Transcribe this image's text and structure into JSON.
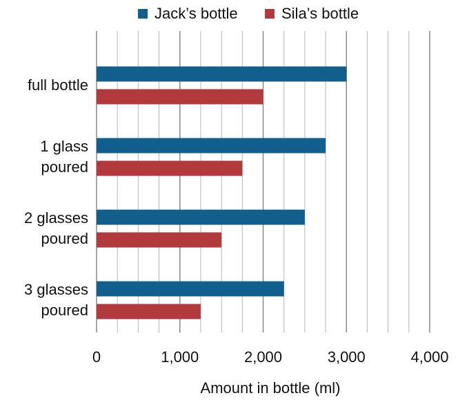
{
  "chart_data": {
    "type": "hbar",
    "x_label": "Amount in bottle (ml)",
    "categories": [
      "full bottle",
      "1 glass poured",
      "2 glasses poured",
      "3 glasses poured"
    ],
    "series": [
      {
        "name": "Jack’s bottle",
        "color": "#125f8e",
        "values": [
          3000,
          2750,
          2500,
          2250
        ]
      },
      {
        "name": "Sila’s bottle",
        "color": "#b23a3c",
        "values": [
          2000,
          1750,
          1500,
          1250
        ]
      }
    ],
    "xlim": [
      0,
      4000
    ],
    "xticks": [
      0,
      {
        "value": 1000,
        "label": "1,000"
      },
      {
        "value": 2000,
        "label": "2,000"
      },
      {
        "value": 3000,
        "label": "3,000"
      },
      {
        "value": 4000,
        "label": "4,000"
      }
    ],
    "xminorticks": [
      250,
      500,
      750,
      1250,
      1500,
      1750,
      2250,
      2500,
      2750,
      3250,
      3500,
      3750
    ],
    "grid": true,
    "legend": "top"
  }
}
